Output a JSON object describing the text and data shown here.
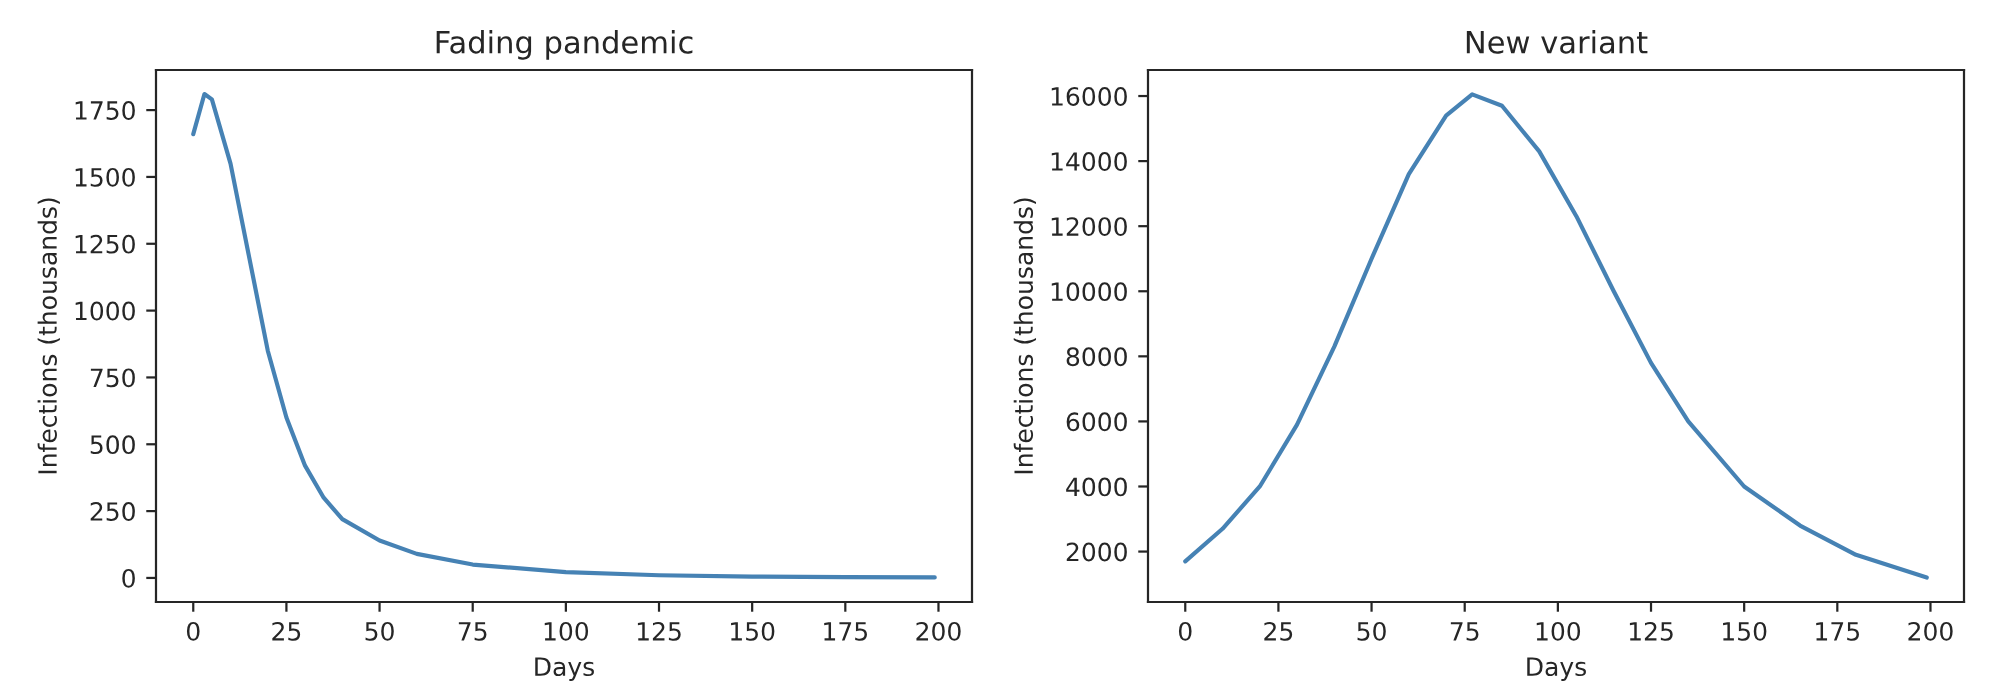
{
  "chart_data": [
    {
      "type": "line",
      "title": "Fading pandemic",
      "xlabel": "Days",
      "ylabel": "Infections (thousands)",
      "x": [
        0,
        3,
        5,
        10,
        15,
        20,
        25,
        30,
        35,
        40,
        50,
        60,
        75,
        100,
        125,
        150,
        175,
        199
      ],
      "series": [
        {
          "color": "#4682b4",
          "values": [
            1660,
            1810,
            1790,
            1550,
            1200,
            850,
            600,
            420,
            300,
            220,
            140,
            90,
            50,
            22,
            10,
            5,
            3,
            2
          ]
        }
      ],
      "xlim": [
        -10,
        209
      ],
      "ylim": [
        -90,
        1900
      ],
      "xticks": [
        0,
        25,
        50,
        75,
        100,
        125,
        150,
        175,
        200
      ],
      "yticks": [
        0,
        250,
        500,
        750,
        1000,
        1250,
        1500,
        1750
      ]
    },
    {
      "type": "line",
      "title": "New variant",
      "xlabel": "Days",
      "ylabel": "Infections (thousands)",
      "x": [
        0,
        10,
        20,
        30,
        40,
        50,
        60,
        70,
        77,
        85,
        95,
        105,
        115,
        125,
        135,
        150,
        165,
        180,
        199
      ],
      "series": [
        {
          "color": "#4682b4",
          "values": [
            1700,
            2700,
            4000,
            5900,
            8300,
            11000,
            13600,
            15400,
            16050,
            15700,
            14300,
            12300,
            10000,
            7800,
            6000,
            4000,
            2800,
            1900,
            1200
          ]
        }
      ],
      "xlim": [
        -10,
        209
      ],
      "ylim": [
        450,
        16800
      ],
      "xticks": [
        0,
        25,
        50,
        75,
        100,
        125,
        150,
        175,
        200
      ],
      "yticks": [
        2000,
        4000,
        6000,
        8000,
        10000,
        12000,
        14000,
        16000
      ]
    }
  ]
}
